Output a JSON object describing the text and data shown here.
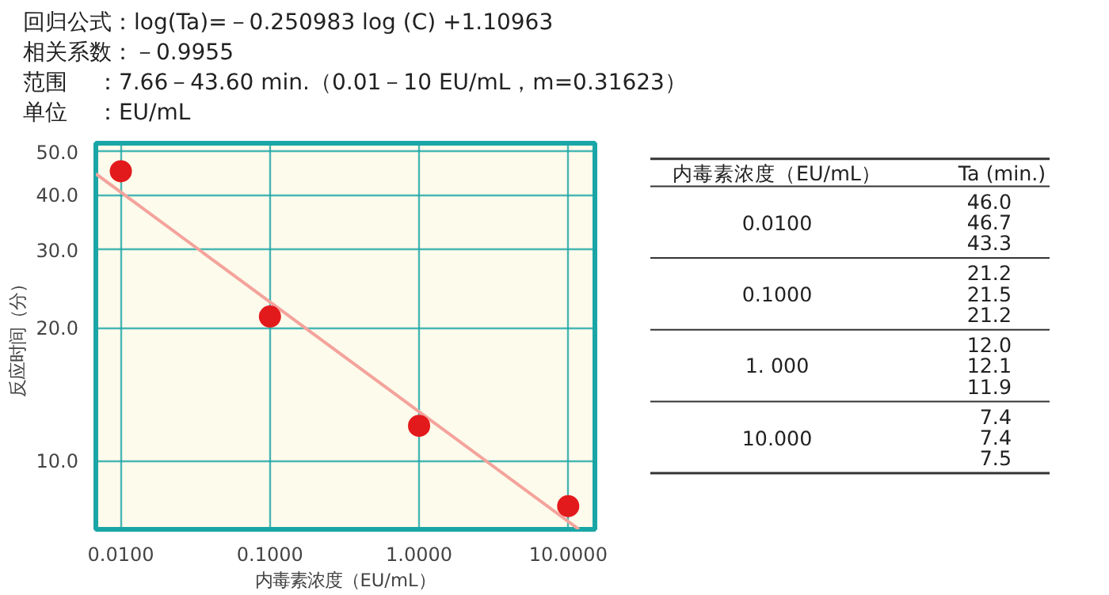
{
  "chart_data": [
    {
      "type": "scatter",
      "annotations": [
        "回归公式：log(Ta)=－0.250983 log (C) +1.10963",
        "相关系数：－0.9955",
        "范围　 ：7.66－43.60 min.（0.01－10 EU/mL，m=0.31623）",
        "单位　 ：EU/mL"
      ],
      "xlabel": "内毒素浓度（EU/mL）",
      "ylabel": "反应时间（分）",
      "log": "xy",
      "xlim": [
        0.0068,
        15.1
      ],
      "ylim": [
        7.0,
        52.3
      ],
      "xticks": [
        {
          "value": 0.01,
          "label": "0.0100"
        },
        {
          "value": 0.1,
          "label": "0.1000"
        },
        {
          "value": 1,
          "label": "1.0000"
        },
        {
          "value": 10,
          "label": "10.0000"
        }
      ],
      "yticks": [
        {
          "value": 10,
          "label": "10.0"
        },
        {
          "value": 20,
          "label": "20.0"
        },
        {
          "value": 30,
          "label": "30.0"
        },
        {
          "value": 40,
          "label": "40.0"
        },
        {
          "value": 50,
          "label": "50.0"
        }
      ],
      "grid": true,
      "series": [
        {
          "type": "scatter",
          "marker": "circle",
          "color": "#e31a1c",
          "x": [
            0.01,
            0.1,
            1,
            10
          ],
          "values": [
            45.2,
            21.2,
            12.0,
            7.9
          ]
        },
        {
          "type": "line",
          "color": "#f4a39c",
          "x": [
            0.0068,
            11.8
          ],
          "values": [
            44.6,
            7.0
          ]
        }
      ]
    },
    {
      "type": "other",
      "annotations": [
        "内毒素浓度（EU/mL）",
        "Ta (min.)",
        "0.0100",
        "46.0",
        "46.7",
        "43.3",
        "0.1000",
        "21.2",
        "21.5",
        "21.2",
        "1. 000",
        "12.0",
        "12.1",
        "11.9",
        "10.000",
        "7.4",
        "7.4",
        "7.5"
      ]
    }
  ]
}
